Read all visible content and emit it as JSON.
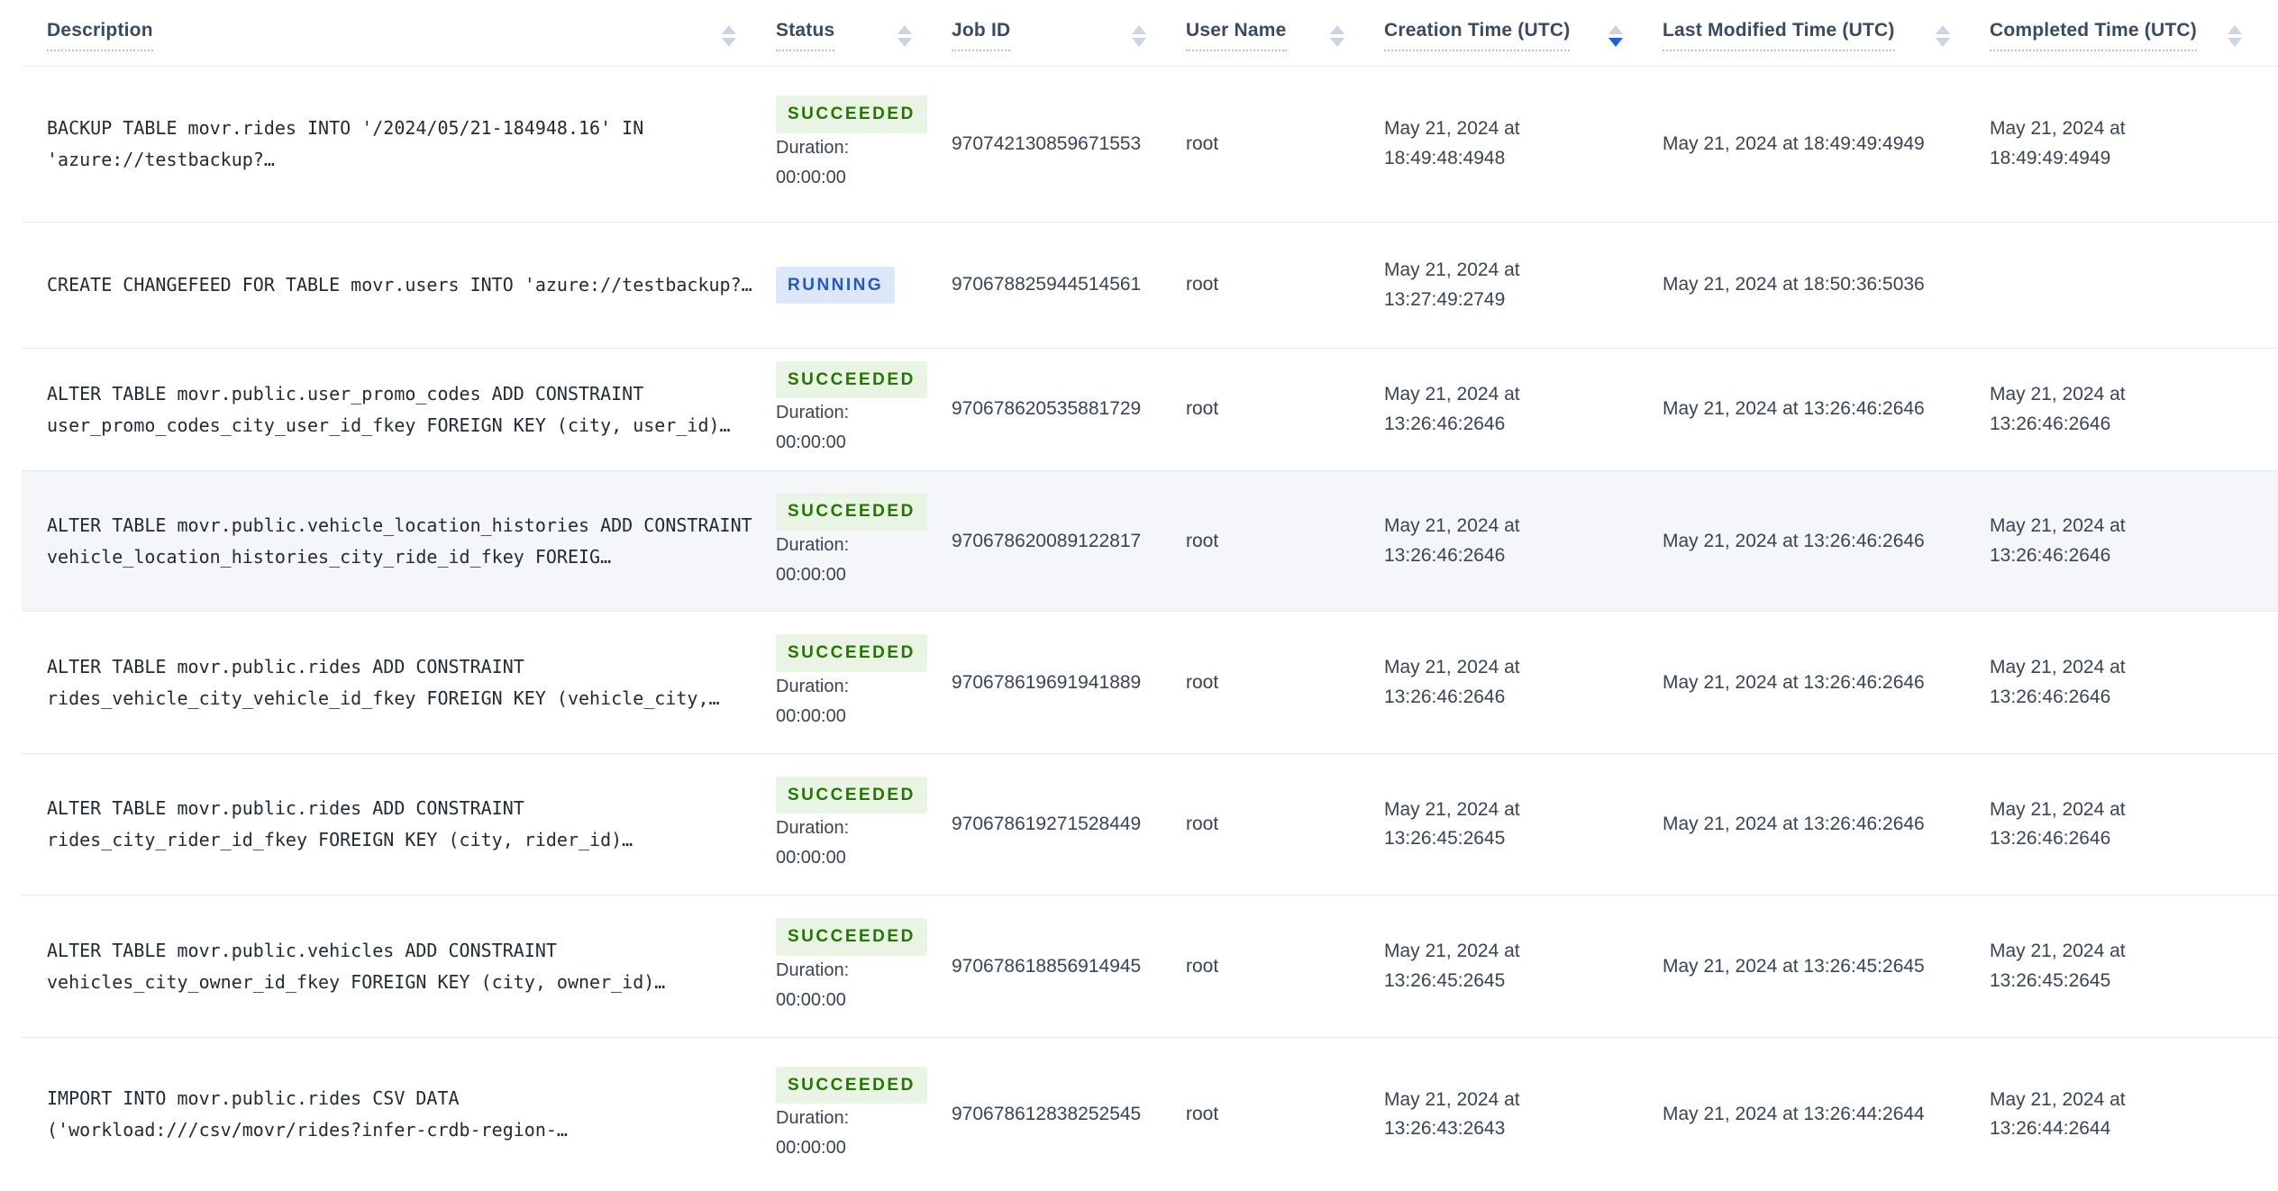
{
  "table": {
    "columns": [
      {
        "key": "description",
        "label": "Description",
        "sort": "none"
      },
      {
        "key": "status",
        "label": "Status",
        "sort": "none"
      },
      {
        "key": "job-id",
        "label": "Job ID",
        "sort": "none"
      },
      {
        "key": "user-name",
        "label": "User Name",
        "sort": "none"
      },
      {
        "key": "creation-time",
        "label": "Creation Time (UTC)",
        "sort": "desc"
      },
      {
        "key": "last-modified-time",
        "label": "Last Modified Time (UTC)",
        "sort": "none"
      },
      {
        "key": "completed-time",
        "label": "Completed Time (UTC)",
        "sort": "none"
      }
    ],
    "rows": [
      {
        "description": "BACKUP TABLE movr.rides INTO '/2024/05/21-184948.16' IN 'azure://testbackup?…",
        "status": "SUCCEEDED",
        "duration_label": "Duration:",
        "duration": "00:00:00",
        "job_id": "970742130859671553",
        "user_name": "root",
        "creation_time": "May 21, 2024 at 18:49:48:4948",
        "last_modified_time": "May 21, 2024 at 18:49:49:4949",
        "completed_time": "May 21, 2024 at 18:49:49:4949",
        "highlighted": false
      },
      {
        "description": "CREATE CHANGEFEED FOR TABLE movr.users INTO 'azure://testbackup?…",
        "status": "RUNNING",
        "job_id": "970678825944514561",
        "user_name": "root",
        "creation_time": "May 21, 2024 at 13:27:49:2749",
        "last_modified_time": "May 21, 2024 at 18:50:36:5036",
        "completed_time": "",
        "highlighted": false
      },
      {
        "description": "ALTER TABLE movr.public.user_promo_codes ADD CONSTRAINT user_promo_codes_city_user_id_fkey FOREIGN KEY (city, user_id)…",
        "status": "SUCCEEDED",
        "duration_label": "Duration:",
        "duration": "00:00:00",
        "job_id": "970678620535881729",
        "user_name": "root",
        "creation_time": "May 21, 2024 at 13:26:46:2646",
        "last_modified_time": "May 21, 2024 at 13:26:46:2646",
        "completed_time": "May 21, 2024 at 13:26:46:2646",
        "highlighted": false
      },
      {
        "description": "ALTER TABLE movr.public.vehicle_location_histories ADD CONSTRAINT vehicle_location_histories_city_ride_id_fkey FOREIG…",
        "status": "SUCCEEDED",
        "duration_label": "Duration:",
        "duration": "00:00:00",
        "job_id": "970678620089122817",
        "user_name": "root",
        "creation_time": "May 21, 2024 at 13:26:46:2646",
        "last_modified_time": "May 21, 2024 at 13:26:46:2646",
        "completed_time": "May 21, 2024 at 13:26:46:2646",
        "highlighted": true
      },
      {
        "description": "ALTER TABLE movr.public.rides ADD CONSTRAINT rides_vehicle_city_vehicle_id_fkey FOREIGN KEY (vehicle_city,…",
        "status": "SUCCEEDED",
        "duration_label": "Duration:",
        "duration": "00:00:00",
        "job_id": "970678619691941889",
        "user_name": "root",
        "creation_time": "May 21, 2024 at 13:26:46:2646",
        "last_modified_time": "May 21, 2024 at 13:26:46:2646",
        "completed_time": "May 21, 2024 at 13:26:46:2646",
        "highlighted": false
      },
      {
        "description": "ALTER TABLE movr.public.rides ADD CONSTRAINT rides_city_rider_id_fkey FOREIGN KEY (city, rider_id)…",
        "status": "SUCCEEDED",
        "duration_label": "Duration:",
        "duration": "00:00:00",
        "job_id": "970678619271528449",
        "user_name": "root",
        "creation_time": "May 21, 2024 at 13:26:45:2645",
        "last_modified_time": "May 21, 2024 at 13:26:46:2646",
        "completed_time": "May 21, 2024 at 13:26:46:2646",
        "highlighted": false
      },
      {
        "description": "ALTER TABLE movr.public.vehicles ADD CONSTRAINT vehicles_city_owner_id_fkey FOREIGN KEY (city, owner_id)…",
        "status": "SUCCEEDED",
        "duration_label": "Duration:",
        "duration": "00:00:00",
        "job_id": "970678618856914945",
        "user_name": "root",
        "creation_time": "May 21, 2024 at 13:26:45:2645",
        "last_modified_time": "May 21, 2024 at 13:26:45:2645",
        "completed_time": "May 21, 2024 at 13:26:45:2645",
        "highlighted": false
      },
      {
        "description": "IMPORT INTO movr.public.rides CSV DATA ('workload:///csv/movr/rides?infer-crdb-region-…",
        "status": "SUCCEEDED",
        "duration_label": "Duration:",
        "duration": "00:00:00",
        "job_id": "970678612838252545",
        "user_name": "root",
        "creation_time": "May 21, 2024 at 13:26:43:2643",
        "last_modified_time": "May 21, 2024 at 13:26:44:2644",
        "completed_time": "May 21, 2024 at 13:26:44:2644",
        "highlighted": false
      }
    ]
  },
  "colors": {
    "header_text": "#394a63",
    "cell_text": "#394455",
    "description_text": "#242a35",
    "row_border": "#e7eaf0",
    "highlighted_row_bg": "#f4f6fa",
    "succeeded_text": "#237700",
    "succeeded_bg": "#e9f4e4",
    "running_text": "#2458c4",
    "running_bg": "#dce8f9",
    "sort_arrow_inactive": "#ccd3e2",
    "sort_arrow_active": "#2160dd"
  }
}
